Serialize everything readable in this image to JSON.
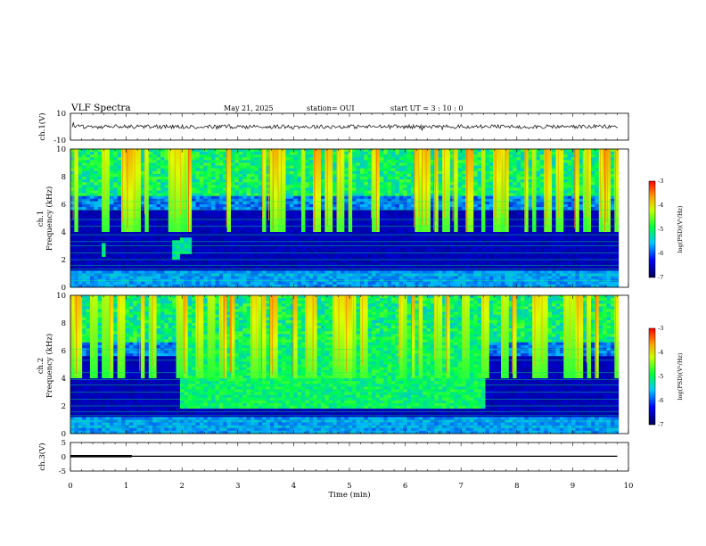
{
  "header": {
    "title": "VLF Spectra",
    "date": "May 21, 2025",
    "station": "station= OUI",
    "start": "start  UT =   3  : 10 : 0"
  },
  "chart_data": [
    {
      "type": "line",
      "panel": "ch1-waveform",
      "ylabel": "ch.1(V)",
      "ylim": [
        -10,
        10
      ],
      "yticks": [
        "10",
        "-10"
      ],
      "baseline_level_v": 0,
      "noise_amplitude_v": 1.5
    },
    {
      "type": "heatmap",
      "panel": "ch1-spectrogram",
      "ylabel_line1": "ch.1",
      "ylabel_line2": "Frequency (kHz)",
      "ylim": [
        0,
        10
      ],
      "yticks": [
        "0",
        "2",
        "4",
        "6",
        "8",
        "10"
      ],
      "colorbar": {
        "label": "log(PSD)(V²/Hz)",
        "range": [
          -7,
          -3
        ],
        "ticks": [
          "-3",
          "-4",
          "-5",
          "-6",
          "-7"
        ]
      },
      "horizontal_lines_khz": [
        0.5,
        0.9,
        1.3,
        1.6,
        2.0,
        2.5,
        3.0,
        3.3,
        3.8,
        4.4,
        4.9,
        5.6,
        6.2
      ],
      "events": [
        {
          "t_start_min": 0.55,
          "t_end_min": 0.62,
          "f_low_khz": 2.2,
          "f_high_khz": 3.2
        },
        {
          "t_start_min": 1.8,
          "t_end_min": 1.9,
          "f_low_khz": 2.0,
          "f_high_khz": 3.3
        },
        {
          "t_start_min": 1.95,
          "t_end_min": 2.15,
          "f_low_khz": 2.5,
          "f_high_khz": 3.6
        }
      ]
    },
    {
      "type": "heatmap",
      "panel": "ch2-spectrogram",
      "ylabel_line1": "ch.2",
      "ylabel_line2": "Frequency (kHz)",
      "ylim": [
        0,
        10
      ],
      "yticks": [
        "0",
        "2",
        "4",
        "6",
        "8",
        "10"
      ],
      "colorbar": {
        "label": "log(PSD)(V²/Hz)",
        "range": [
          -7,
          -3
        ],
        "ticks": [
          "-3",
          "-4",
          "-5",
          "-6",
          "-7"
        ]
      },
      "horizontal_lines_khz": [
        0.5,
        0.9,
        1.3,
        1.6,
        2.0,
        2.5,
        3.0,
        3.5,
        3.9,
        4.4,
        5.3,
        6.1
      ],
      "events": [
        {
          "t_start_min": 1.95,
          "t_end_min": 7.4,
          "f_low_khz": 1.8,
          "f_high_khz": 7.0,
          "note": "broadband emission block"
        }
      ]
    },
    {
      "type": "line",
      "panel": "ch3-waveform",
      "ylabel": "ch.3(V)",
      "ylim": [
        -5,
        5
      ],
      "yticks": [
        "5",
        "0",
        "-5"
      ],
      "segments": [
        {
          "t_start_min": 0,
          "t_end_min": 1.1,
          "value_v": 0.2,
          "thickness": "thick"
        },
        {
          "t_start_min": 1.1,
          "t_end_min": 9.8,
          "value_v": 0.2,
          "thickness": "thin"
        }
      ]
    }
  ],
  "x_axis": {
    "label": "Time (min)",
    "range": [
      0,
      10
    ],
    "ticks": [
      "0",
      "1",
      "2",
      "3",
      "4",
      "5",
      "6",
      "7",
      "8",
      "9",
      "10"
    ],
    "data_end_min": 9.82
  },
  "colors": {
    "background_deep": "#000a50",
    "low": "#0000c8",
    "mid_low": "#00b4ff",
    "mid": "#00ff50",
    "high": "#ffff00",
    "peak": "#ff0000"
  }
}
